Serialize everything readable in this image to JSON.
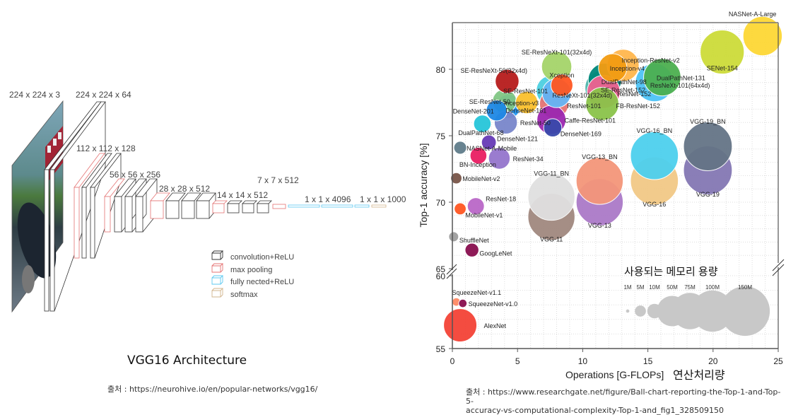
{
  "left": {
    "title": "VGG16 Architecture",
    "source": "출처 : https://neurohive.io/en/popular-networks/vgg16/",
    "layer_labels": [
      "224 x 224 x 3",
      "224 x 224 x 64",
      "112 x 112 x 128",
      "56 x 56 x 256",
      "28 x 28 x 512",
      "14 x 14 x 512",
      "7 x 7 x 512",
      "1 x 1 x 4096",
      "1 x 1 x 1000"
    ],
    "legend": [
      {
        "label": "convolution+ReLU",
        "color": "#333333"
      },
      {
        "label": "max pooling",
        "color": "#e57373"
      },
      {
        "label": "fully nected+ReLU",
        "color": "#5bc8f0"
      },
      {
        "label": "softmax",
        "color": "#d2b48c"
      }
    ]
  },
  "right": {
    "source_line1": "출처 : https://www.researchgate.net/figure/Ball-chart-reporting-the-Top-1-and-Top-5-",
    "source_line2": "accuracy-vs-computational-complexity-Top-1-and_fig1_328509150",
    "memory_title": "사용되는 메모리 용량",
    "xlabel_korean": "연산처리량"
  },
  "chart_data": {
    "type": "scatter",
    "subtype": "bubble",
    "title": "",
    "xlabel": "Operations [G-FLOPs]",
    "ylabel": "Top-1 accuracy [%]",
    "xlim": [
      0,
      25
    ],
    "ylim_upper": [
      65,
      83
    ],
    "ylim_lower": [
      55,
      60
    ],
    "axis_break": "between 60 and 65",
    "x_ticks": [
      "0",
      "5",
      "10",
      "15",
      "20",
      "25"
    ],
    "y_ticks_upper": [
      "65",
      "70",
      "75",
      "80"
    ],
    "y_ticks_lower": [
      "55",
      "60"
    ],
    "grid": true,
    "size_legend": {
      "position": "bottom-right",
      "labels": [
        "1M",
        "5M",
        "10M",
        "50M",
        "75M",
        "100M",
        "150M"
      ],
      "values_M": [
        1,
        5,
        10,
        50,
        75,
        100,
        150
      ]
    },
    "points": [
      {
        "name": "NASNet-A-Large",
        "x": 23.8,
        "y": 82.5,
        "params_M": 88.9,
        "color": "#fdd835"
      },
      {
        "name": "SENet-154",
        "x": 20.7,
        "y": 81.3,
        "params_M": 115,
        "color": "#cddc39"
      },
      {
        "name": "SE-ResNeXt-101(32x4d)",
        "x": 8.0,
        "y": 80.2,
        "params_M": 49,
        "color": "#a5d46a"
      },
      {
        "name": "Inception-ResNet-v2",
        "x": 13.1,
        "y": 80.3,
        "params_M": 55.8,
        "color": "#ffb74d"
      },
      {
        "name": "Inception-v4",
        "x": 12.3,
        "y": 80.1,
        "params_M": 42.7,
        "color": "#f39c12"
      },
      {
        "name": "DualPathNet-131",
        "x": 16.1,
        "y": 79.4,
        "params_M": 79.3,
        "color": "#4caf50"
      },
      {
        "name": "DualPathNet-98",
        "x": 11.7,
        "y": 79.2,
        "params_M": 61.6,
        "color": "#00897b"
      },
      {
        "name": "ResNeXt-101(64x4d)",
        "x": 15.5,
        "y": 79.0,
        "params_M": 83.5,
        "color": "#4fc3f7"
      },
      {
        "name": "SE-ResNeXt-50(32x4d)",
        "x": 4.2,
        "y": 79.1,
        "params_M": 27.6,
        "color": "#b71c1c"
      },
      {
        "name": "Xception",
        "x": 8.4,
        "y": 78.8,
        "params_M": 22.9,
        "color": "#ff5722"
      },
      {
        "name": "SE-ResNet-152",
        "x": 11.5,
        "y": 78.6,
        "params_M": 66.8,
        "color": "#4db6ac"
      },
      {
        "name": "SE-ResNet-101",
        "x": 7.6,
        "y": 78.4,
        "params_M": 49.3,
        "color": "#4dd0e1"
      },
      {
        "name": "ResNeXt-101(32x4d)",
        "x": 8.0,
        "y": 78.2,
        "params_M": 44.2,
        "color": "#64b5f6"
      },
      {
        "name": "ResNet-152",
        "x": 11.6,
        "y": 78.3,
        "params_M": 60.2,
        "color": "#f06292"
      },
      {
        "name": "FB-ResNet-152",
        "x": 11.5,
        "y": 77.4,
        "params_M": 60.2,
        "color": "#8bc34a"
      },
      {
        "name": "ResNet-101",
        "x": 7.8,
        "y": 77.4,
        "params_M": 44.5,
        "color": "#e57373"
      },
      {
        "name": "SE-ResNet-50",
        "x": 4.0,
        "y": 77.6,
        "params_M": 28.1,
        "color": "#81c784"
      },
      {
        "name": "Inception-v3",
        "x": 5.7,
        "y": 77.5,
        "params_M": 23.8,
        "color": "#fbc02d"
      },
      {
        "name": "DenseNet-161",
        "x": 4.3,
        "y": 77.2,
        "params_M": 28.7,
        "color": "#2196f3"
      },
      {
        "name": "DenseNet-201",
        "x": 3.4,
        "y": 76.9,
        "params_M": 20,
        "color": "#1e88e5"
      },
      {
        "name": "Caffe-ResNet-101",
        "x": 7.6,
        "y": 76.2,
        "params_M": 44.5,
        "color": "#9c27b0"
      },
      {
        "name": "DenseNet-169",
        "x": 7.7,
        "y": 75.6,
        "params_M": 14.1,
        "color": "#3949ab"
      },
      {
        "name": "ResNet-50",
        "x": 4.1,
        "y": 76.0,
        "params_M": 25.6,
        "color": "#7986cb"
      },
      {
        "name": "DualPathNet-68",
        "x": 2.3,
        "y": 75.9,
        "params_M": 12.6,
        "color": "#26c6da"
      },
      {
        "name": "DenseNet-121",
        "x": 2.8,
        "y": 74.5,
        "params_M": 8.0,
        "color": "#673ab7"
      },
      {
        "name": "NASNet-A-Mobile",
        "x": 0.6,
        "y": 74.1,
        "params_M": 5.3,
        "color": "#607d8b"
      },
      {
        "name": "BN-Inception",
        "x": 2.0,
        "y": 73.5,
        "params_M": 11.3,
        "color": "#e91e63"
      },
      {
        "name": "ResNet-34",
        "x": 3.6,
        "y": 73.3,
        "params_M": 21.8,
        "color": "#9575cd"
      },
      {
        "name": "MobileNet-v2",
        "x": 0.3,
        "y": 71.8,
        "params_M": 3.5,
        "color": "#795548"
      },
      {
        "name": "ResNet-18",
        "x": 1.8,
        "y": 69.7,
        "params_M": 11.7,
        "color": "#ba68c8"
      },
      {
        "name": "MobileNet-v1",
        "x": 0.6,
        "y": 69.5,
        "params_M": 4.2,
        "color": "#ff5722"
      },
      {
        "name": "ShuffleNet",
        "x": 0.1,
        "y": 67.4,
        "params_M": 2.3,
        "color": "#9e9e9e"
      },
      {
        "name": "GoogLeNet",
        "x": 1.5,
        "y": 66.4,
        "params_M": 6.6,
        "color": "#880e4f"
      },
      {
        "name": "VGG-11_BN",
        "x": 7.6,
        "y": 70.4,
        "params_M": 132.9,
        "color": "#e0e0e0"
      },
      {
        "name": "VGG-11",
        "x": 7.6,
        "y": 68.9,
        "params_M": 132.9,
        "color": "#a1887f"
      },
      {
        "name": "VGG-13_BN",
        "x": 11.3,
        "y": 71.6,
        "params_M": 133,
        "color": "#f4967a"
      },
      {
        "name": "VGG-13",
        "x": 11.3,
        "y": 70.0,
        "params_M": 133,
        "color": "#ab7ac8"
      },
      {
        "name": "VGG-16_BN",
        "x": 15.5,
        "y": 73.5,
        "params_M": 138.4,
        "color": "#4dd0ee"
      },
      {
        "name": "VGG-16",
        "x": 15.5,
        "y": 71.6,
        "params_M": 138.4,
        "color": "#f2c986"
      },
      {
        "name": "VGG-19_BN",
        "x": 19.6,
        "y": 74.2,
        "params_M": 143.7,
        "color": "#657486"
      },
      {
        "name": "VGG-19",
        "x": 19.6,
        "y": 72.4,
        "params_M": 143.7,
        "color": "#8478b4"
      },
      {
        "name": "SqueezeNet-v1.1",
        "x": 0.3,
        "y": 58.2,
        "params_M": 1.2,
        "color": "#ff8a65"
      },
      {
        "name": "SqueezeNet-v1.0",
        "x": 0.8,
        "y": 58.1,
        "params_M": 1.2,
        "color": "#880e4f"
      },
      {
        "name": "AlexNet",
        "x": 0.6,
        "y": 56.6,
        "params_M": 61,
        "color": "#f44336"
      }
    ]
  }
}
